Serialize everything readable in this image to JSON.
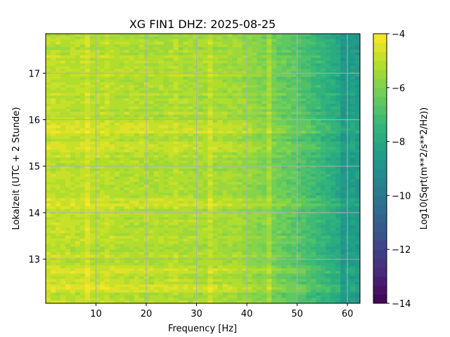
{
  "chart_data": {
    "type": "heatmap",
    "title": "XG FIN1  DHZ: 2025-08-25",
    "xlabel": "Frequency [Hz]",
    "ylabel": "Lokalzeit (UTC + 2 Stunde)",
    "xlim": [
      0,
      62.5
    ],
    "ylim": [
      17.85,
      12.05
    ],
    "y_inverted": true,
    "xticks": [
      10,
      20,
      30,
      40,
      50,
      60
    ],
    "yticks": [
      13,
      14,
      15,
      16,
      17
    ],
    "grid": true,
    "colormap": "viridis",
    "colorbar": {
      "label": "Log10(Sqrt(m**2/s**2/Hz))",
      "range": [
        -14,
        -4
      ],
      "ticks": [
        -4,
        -6,
        -8,
        -10,
        -12,
        -14
      ],
      "levels": 30
    },
    "colors": {
      "frame": "#000000",
      "grid": "#b0b0b0"
    }
  }
}
